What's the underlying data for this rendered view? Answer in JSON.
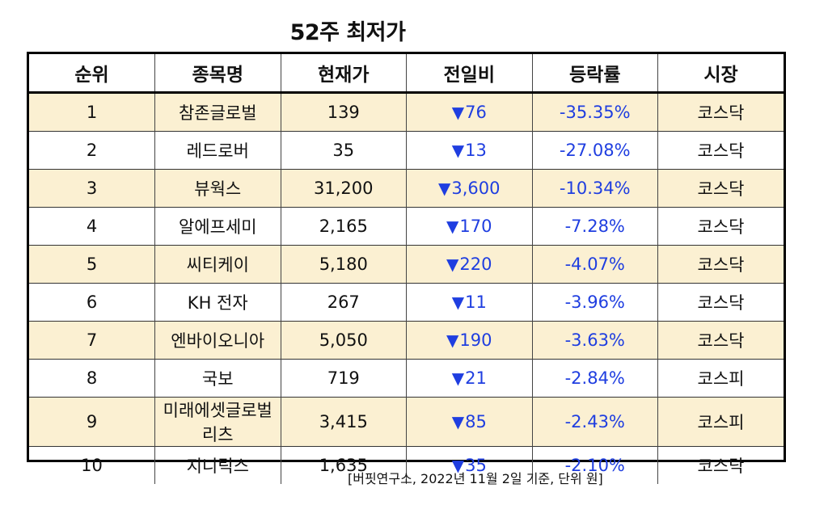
{
  "title": "52주 최저가",
  "table": {
    "headers": [
      "순위",
      "종목명",
      "현재가",
      "전일비",
      "등락률",
      "시장"
    ],
    "rows": [
      {
        "rank": "1",
        "name": "참존글로벌",
        "price": "139",
        "change": "76",
        "rate": "-35.35%",
        "market": "코스닥"
      },
      {
        "rank": "2",
        "name": "레드로버",
        "price": "35",
        "change": "13",
        "rate": "-27.08%",
        "market": "코스닥"
      },
      {
        "rank": "3",
        "name": "뷰웍스",
        "price": "31,200",
        "change": "3,600",
        "rate": "-10.34%",
        "market": "코스닥"
      },
      {
        "rank": "4",
        "name": "알에프세미",
        "price": "2,165",
        "change": "170",
        "rate": "-7.28%",
        "market": "코스닥"
      },
      {
        "rank": "5",
        "name": "씨티케이",
        "price": "5,180",
        "change": "220",
        "rate": "-4.07%",
        "market": "코스닥"
      },
      {
        "rank": "6",
        "name": "KH 전자",
        "price": "267",
        "change": "11",
        "rate": "-3.96%",
        "market": "코스닥"
      },
      {
        "rank": "7",
        "name": "엔바이오니아",
        "price": "5,050",
        "change": "190",
        "rate": "-3.63%",
        "market": "코스닥"
      },
      {
        "rank": "8",
        "name": "국보",
        "price": "719",
        "change": "21",
        "rate": "-2.84%",
        "market": "코스피"
      },
      {
        "rank": "9",
        "name": "미래에셋글로벌리츠",
        "price": "3,415",
        "change": "85",
        "rate": "-2.43%",
        "market": "코스피"
      },
      {
        "rank": "10",
        "name": "지니틱스",
        "price": "1,635",
        "change": "35",
        "rate": "-2.10%",
        "market": "코스닥"
      }
    ]
  },
  "down_marker": "▼",
  "footnote": "[버핏연구소, 2022년 11월 2일 기준, 단위 원]",
  "colors": {
    "shaded_row": "#fbf0d2",
    "change_text": "#1f3ee0"
  }
}
